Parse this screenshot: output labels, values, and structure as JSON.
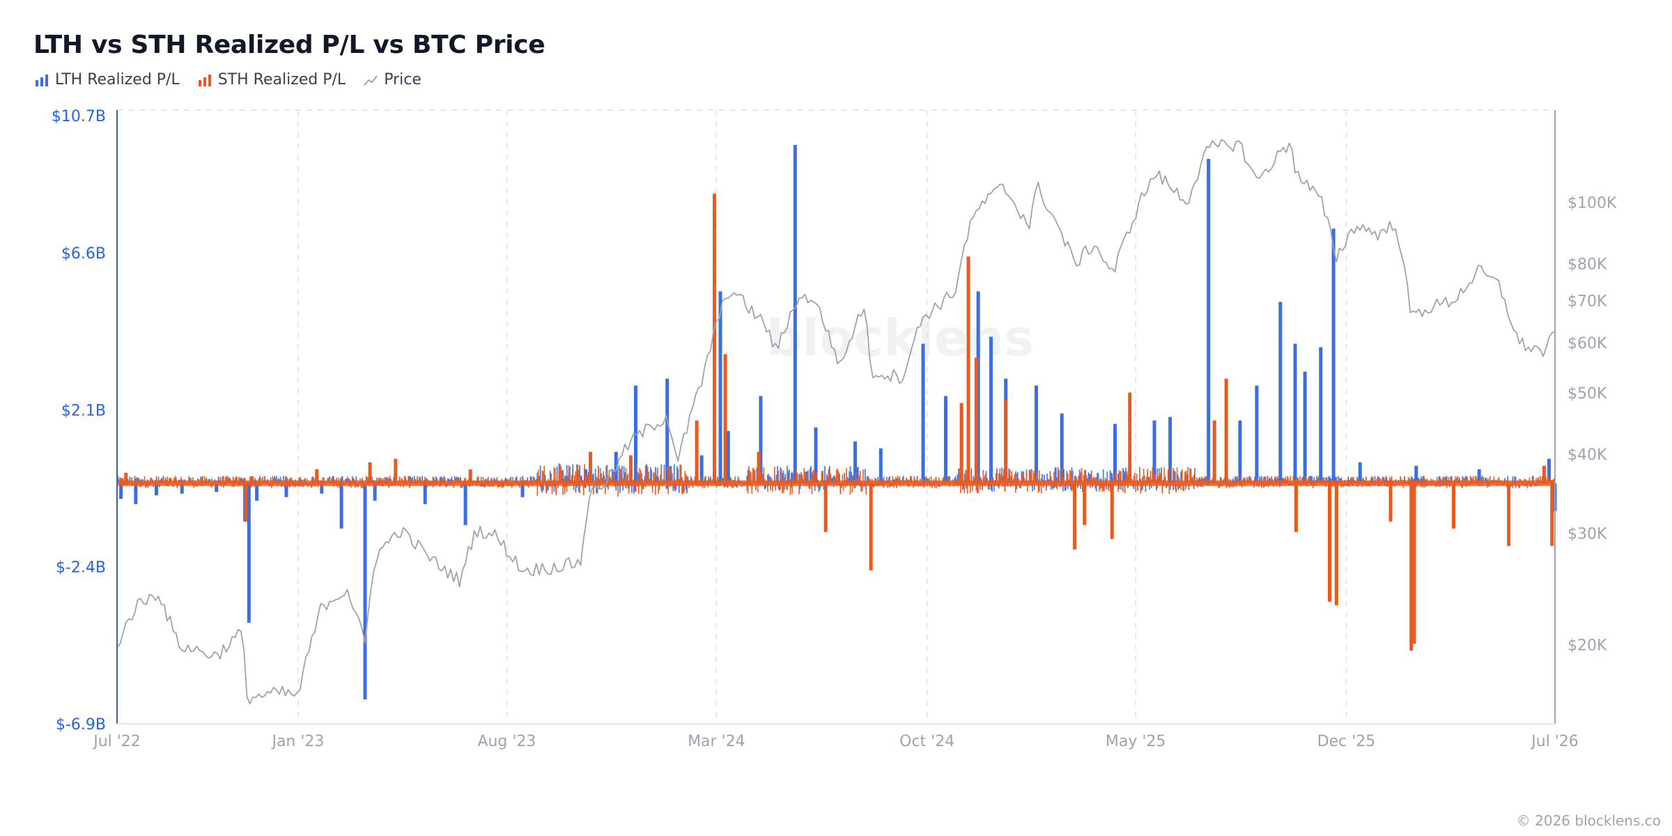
{
  "title": "LTH vs STH Realized P/L vs BTC Price",
  "legend": [
    {
      "label": "LTH Realized P/L",
      "icon": "bar-chart-icon",
      "color": "#3b6fe0"
    },
    {
      "label": "STH Realized P/L",
      "icon": "bar-chart-icon",
      "color": "#ea5a1c"
    },
    {
      "label": "Price",
      "icon": "line-chart-icon",
      "color": "#9ca3af"
    }
  ],
  "footer": "© 2026 blocklens.co",
  "watermark": "blocklens",
  "chart_data": {
    "type": "bar",
    "title": "LTH vs STH Realized P/L vs BTC Price",
    "x_ticks": [
      "Jul '22",
      "Jan '23",
      "Aug '23",
      "Mar '24",
      "Oct '24",
      "May '25",
      "Dec '25",
      "Jul '26"
    ],
    "x_range": [
      "2022-07",
      "2026-07"
    ],
    "left_axis": {
      "ticks": [
        "$10.7B",
        "$6.6B",
        "$2.1B",
        "$-2.4B",
        "$-6.9B"
      ],
      "range": [
        -6.9,
        10.7
      ],
      "unit": "USD billions"
    },
    "right_axis": {
      "ticks": [
        "$100K",
        "$80K",
        "$70K",
        "$60K",
        "$50K",
        "$40K",
        "$30K",
        "$20K"
      ],
      "tick_values": [
        100000,
        80000,
        70000,
        60000,
        50000,
        40000,
        30000,
        20000
      ],
      "scale": "log",
      "range": [
        15000,
        140000
      ]
    },
    "grid": "vertical dashed",
    "colors": {
      "lth": "#3b6fe0",
      "sth": "#ea5a1c",
      "price": "#9ca3af",
      "left_axis": "#2563eb"
    },
    "series": [
      {
        "name": "LTH Realized P/L",
        "kind": "bar",
        "axis": "left",
        "unit": "USD billions",
        "points": [
          [
            "2022-07-05",
            -0.45
          ],
          [
            "2022-07-20",
            -0.6
          ],
          [
            "2022-08-10",
            -0.35
          ],
          [
            "2022-09-05",
            -0.3
          ],
          [
            "2022-10-10",
            -0.25
          ],
          [
            "2022-11-08",
            -1.1
          ],
          [
            "2022-11-12",
            -4.0
          ],
          [
            "2022-11-20",
            -0.5
          ],
          [
            "2022-12-20",
            -0.4
          ],
          [
            "2023-01-25",
            -0.3
          ],
          [
            "2023-02-14",
            -1.3
          ],
          [
            "2023-03-10",
            -6.2
          ],
          [
            "2023-03-20",
            -0.5
          ],
          [
            "2023-05-10",
            -0.6
          ],
          [
            "2023-06-20",
            -1.2
          ],
          [
            "2023-08-17",
            -0.4
          ],
          [
            "2023-10-20",
            0.4
          ],
          [
            "2023-11-20",
            0.9
          ],
          [
            "2023-12-10",
            2.8
          ],
          [
            "2024-01-11",
            3.0
          ],
          [
            "2024-02-15",
            0.8
          ],
          [
            "2024-03-05",
            5.5
          ],
          [
            "2024-03-13",
            1.5
          ],
          [
            "2024-04-15",
            2.5
          ],
          [
            "2024-05-20",
            9.7
          ],
          [
            "2024-06-10",
            1.6
          ],
          [
            "2024-07-20",
            1.2
          ],
          [
            "2024-08-15",
            1.0
          ],
          [
            "2024-09-27",
            4.0
          ],
          [
            "2024-10-20",
            2.5
          ],
          [
            "2024-11-12",
            3.5
          ],
          [
            "2024-11-22",
            5.5
          ],
          [
            "2024-12-05",
            4.2
          ],
          [
            "2024-12-20",
            3.0
          ],
          [
            "2025-01-20",
            2.8
          ],
          [
            "2025-02-15",
            2.0
          ],
          [
            "2025-04-10",
            1.7
          ],
          [
            "2025-05-20",
            1.8
          ],
          [
            "2025-06-05",
            1.9
          ],
          [
            "2025-07-14",
            9.3
          ],
          [
            "2025-08-15",
            1.8
          ],
          [
            "2025-09-01",
            2.8
          ],
          [
            "2025-09-25",
            5.2
          ],
          [
            "2025-10-10",
            4.0
          ],
          [
            "2025-10-20",
            3.2
          ],
          [
            "2025-11-05",
            3.9
          ],
          [
            "2025-11-18",
            7.3
          ],
          [
            "2025-12-15",
            0.6
          ],
          [
            "2026-02-10",
            0.5
          ],
          [
            "2026-04-15",
            0.4
          ],
          [
            "2026-06-25",
            0.7
          ],
          [
            "2026-07-01",
            -0.8
          ]
        ]
      },
      {
        "name": "STH Realized P/L",
        "kind": "bar",
        "axis": "left",
        "unit": "USD billions",
        "points": [
          [
            "2022-07-10",
            0.3
          ],
          [
            "2022-11-09",
            -1.1
          ],
          [
            "2022-11-15",
            0.2
          ],
          [
            "2023-01-20",
            0.4
          ],
          [
            "2023-03-15",
            0.6
          ],
          [
            "2023-04-10",
            0.7
          ],
          [
            "2023-06-25",
            0.4
          ],
          [
            "2023-10-25",
            0.9
          ],
          [
            "2023-12-05",
            0.8
          ],
          [
            "2024-02-10",
            1.8
          ],
          [
            "2024-02-28",
            8.3
          ],
          [
            "2024-03-10",
            3.7
          ],
          [
            "2024-04-13",
            0.9
          ],
          [
            "2024-06-20",
            -1.4
          ],
          [
            "2024-08-05",
            -2.5
          ],
          [
            "2024-11-05",
            2.3
          ],
          [
            "2024-11-12",
            6.5
          ],
          [
            "2024-11-20",
            3.6
          ],
          [
            "2024-12-20",
            2.4
          ],
          [
            "2025-02-28",
            -1.9
          ],
          [
            "2025-03-10",
            -1.2
          ],
          [
            "2025-04-07",
            -1.6
          ],
          [
            "2025-04-25",
            2.6
          ],
          [
            "2025-07-20",
            1.8
          ],
          [
            "2025-08-01",
            3.0
          ],
          [
            "2025-10-11",
            -1.4
          ],
          [
            "2025-11-14",
            -3.4
          ],
          [
            "2025-11-21",
            -3.5
          ],
          [
            "2026-01-15",
            -1.1
          ],
          [
            "2026-02-05",
            -4.8
          ],
          [
            "2026-02-08",
            -4.6
          ],
          [
            "2026-03-20",
            -1.3
          ],
          [
            "2026-05-15",
            -1.8
          ],
          [
            "2026-06-20",
            0.5
          ],
          [
            "2026-06-28",
            -1.8
          ]
        ]
      },
      {
        "name": "Price",
        "kind": "line",
        "axis": "right",
        "unit": "USD",
        "points": [
          [
            "2022-07-01",
            20000
          ],
          [
            "2022-07-20",
            23000
          ],
          [
            "2022-08-12",
            24200
          ],
          [
            "2022-09-01",
            20000
          ],
          [
            "2022-10-10",
            19200
          ],
          [
            "2022-11-05",
            21000
          ],
          [
            "2022-11-10",
            16500
          ],
          [
            "2022-12-15",
            16800
          ],
          [
            "2023-01-01",
            16600
          ],
          [
            "2023-01-25",
            23000
          ],
          [
            "2023-02-20",
            24500
          ],
          [
            "2023-03-10",
            20000
          ],
          [
            "2023-03-20",
            27500
          ],
          [
            "2023-04-14",
            30400
          ],
          [
            "2023-05-20",
            27000
          ],
          [
            "2023-06-15",
            25200
          ],
          [
            "2023-06-30",
            30400
          ],
          [
            "2023-07-20",
            29800
          ],
          [
            "2023-08-17",
            26200
          ],
          [
            "2023-09-15",
            26500
          ],
          [
            "2023-10-15",
            27000
          ],
          [
            "2023-10-24",
            34500
          ],
          [
            "2023-11-15",
            37000
          ],
          [
            "2023-12-05",
            42000
          ],
          [
            "2024-01-11",
            46000
          ],
          [
            "2024-01-22",
            39000
          ],
          [
            "2024-02-15",
            52000
          ],
          [
            "2024-03-05",
            67000
          ],
          [
            "2024-03-14",
            73000
          ],
          [
            "2024-04-20",
            64000
          ],
          [
            "2024-05-01",
            58000
          ],
          [
            "2024-05-21",
            70000
          ],
          [
            "2024-06-07",
            71000
          ],
          [
            "2024-07-05",
            55000
          ],
          [
            "2024-07-29",
            69000
          ],
          [
            "2024-08-05",
            54000
          ],
          [
            "2024-09-06",
            53000
          ],
          [
            "2024-09-27",
            66000
          ],
          [
            "2024-10-29",
            72000
          ],
          [
            "2024-11-12",
            90000
          ],
          [
            "2024-11-22",
            98000
          ],
          [
            "2024-12-17",
            106000
          ],
          [
            "2025-01-13",
            92000
          ],
          [
            "2025-01-21",
            106000
          ],
          [
            "2025-02-28",
            80000
          ],
          [
            "2025-03-20",
            86000
          ],
          [
            "2025-04-08",
            77000
          ],
          [
            "2025-05-10",
            104000
          ],
          [
            "2025-05-22",
            111000
          ],
          [
            "2025-06-22",
            100000
          ],
          [
            "2025-07-14",
            122000
          ],
          [
            "2025-08-14",
            124000
          ],
          [
            "2025-09-01",
            108000
          ],
          [
            "2025-10-06",
            125000
          ],
          [
            "2025-10-11",
            111000
          ],
          [
            "2025-11-05",
            101000
          ],
          [
            "2025-11-21",
            82000
          ],
          [
            "2025-12-10",
            92000
          ],
          [
            "2026-01-05",
            89000
          ],
          [
            "2026-01-20",
            93000
          ],
          [
            "2026-02-05",
            66000
          ],
          [
            "2026-02-20",
            68000
          ],
          [
            "2026-03-20",
            70000
          ],
          [
            "2026-04-15",
            78000
          ],
          [
            "2026-05-05",
            74000
          ],
          [
            "2026-05-25",
            60000
          ],
          [
            "2026-06-20",
            58000
          ],
          [
            "2026-07-01",
            62000
          ]
        ]
      }
    ]
  }
}
